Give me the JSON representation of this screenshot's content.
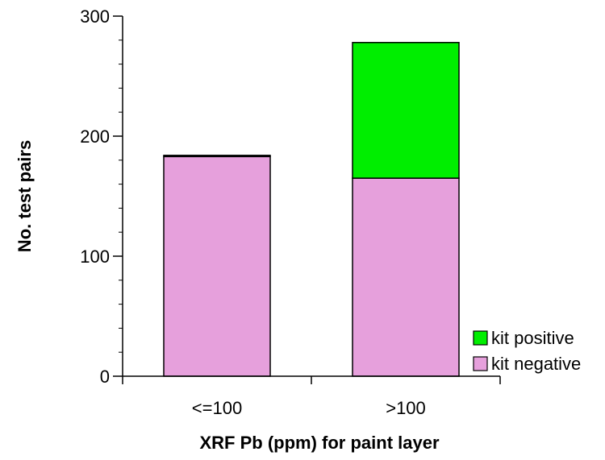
{
  "chart_data": {
    "type": "bar",
    "stacked": true,
    "categories": [
      "<=100",
      ">100"
    ],
    "series": [
      {
        "name": "kit negative",
        "values": [
          183,
          165
        ],
        "color": "#e6a0dc"
      },
      {
        "name": "kit positive",
        "values": [
          1,
          113
        ],
        "color": "#00ee00"
      }
    ],
    "xlabel": "XRF Pb (ppm) for paint layer",
    "ylabel": "No. test pairs",
    "ylim": [
      0,
      300
    ],
    "yticks": [
      0,
      100,
      200,
      300
    ],
    "y_minor_step": 20,
    "grid": false,
    "legend_position": "bottom-right",
    "legend_order": [
      "kit positive",
      "kit negative"
    ]
  }
}
